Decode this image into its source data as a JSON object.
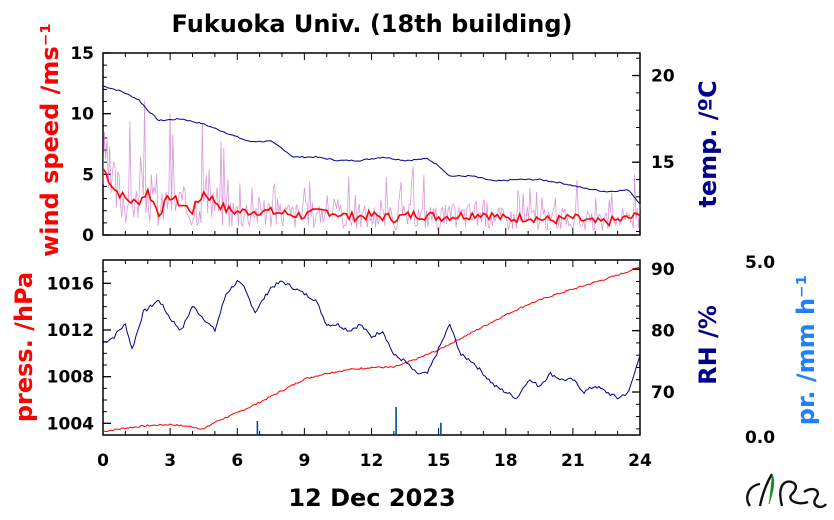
{
  "title": "Fukuoka Univ. (18th building)",
  "xlabel": "12 Dec 2023",
  "colors": {
    "wind": "#ff0000",
    "wind_raw": "#cc77cc",
    "temp": "#00008b",
    "press": "#ff0000",
    "rh": "#00008b",
    "precip": "#1e7fff",
    "precip_bar": "#00508a"
  },
  "logo_icon": "university-logo-icon",
  "chart_data": [
    {
      "type": "line",
      "panel": "top",
      "x_range": [
        0,
        24
      ],
      "x_ticks": [
        "0",
        "3",
        "6",
        "9",
        "12",
        "15",
        "18",
        "21",
        "24"
      ],
      "left_axis": {
        "label": "wind speed /ms⁻¹",
        "ticks": [
          "0",
          "5",
          "10",
          "15"
        ],
        "range": [
          0,
          15
        ]
      },
      "right_axis": {
        "label": "temp. /ºC",
        "ticks": [
          "15",
          "20"
        ],
        "range": [
          10.8,
          21.3
        ]
      },
      "series": [
        {
          "name": "wind speed",
          "axis": "left",
          "x": [
            0,
            0.5,
            1,
            1.5,
            2,
            2.5,
            3,
            3.5,
            4,
            4.5,
            5,
            5.5,
            6,
            7,
            8,
            9,
            10,
            11,
            12,
            13,
            14,
            15,
            16,
            17,
            18,
            19,
            20,
            21,
            22,
            23,
            24
          ],
          "y": [
            5.5,
            3.8,
            3.0,
            2.6,
            3.6,
            1.8,
            3.2,
            2.5,
            2.0,
            3.5,
            2.8,
            2.1,
            1.9,
            2.0,
            1.8,
            1.6,
            2.0,
            1.5,
            1.6,
            1.4,
            1.7,
            1.5,
            1.6,
            1.8,
            1.3,
            1.5,
            1.2,
            1.4,
            1.0,
            1.2,
            1.6
          ]
        },
        {
          "name": "temperature",
          "axis": "right",
          "x": [
            0,
            0.8,
            1.6,
            2.0,
            2.5,
            3.5,
            4.5,
            5.5,
            6.5,
            7.5,
            8.0,
            8.5,
            9.5,
            10.5,
            11.5,
            12.5,
            13.5,
            14.5,
            15.0,
            15.5,
            16.5,
            17.5,
            18.5,
            19.5,
            20.5,
            21.5,
            22.5,
            23.5,
            24
          ],
          "y": [
            19.4,
            19.1,
            18.6,
            18.0,
            17.4,
            17.5,
            17.2,
            16.7,
            16.2,
            16.2,
            15.8,
            15.3,
            15.3,
            15.1,
            15.1,
            15.3,
            15.1,
            15.2,
            14.8,
            14.2,
            14.2,
            13.9,
            14.0,
            14.0,
            13.8,
            13.5,
            13.3,
            13.4,
            12.6
          ]
        }
      ]
    },
    {
      "type": "line",
      "panel": "bottom",
      "x_range": [
        0,
        24
      ],
      "x_ticks": [
        "0",
        "3",
        "6",
        "9",
        "12",
        "15",
        "18",
        "21",
        "24"
      ],
      "left_axis": {
        "label": "press. /hPa",
        "ticks": [
          "1004",
          "1008",
          "1012",
          "1016"
        ],
        "range": [
          1003,
          1018
        ]
      },
      "right_axis": {
        "label": "RH /%",
        "ticks": [
          "70",
          "80",
          "90"
        ],
        "range": [
          63,
          91.5
        ]
      },
      "precip_axis": {
        "label": "pr. /mm h⁻¹",
        "ticks": [
          "0.0",
          "5.0"
        ],
        "range": [
          0,
          5
        ]
      },
      "series": [
        {
          "name": "pressure",
          "axis": "left",
          "x": [
            0,
            1,
            2,
            3,
            4,
            4.5,
            5,
            6,
            7,
            8,
            9,
            10,
            11,
            12,
            13,
            14,
            15,
            16,
            17,
            18,
            19,
            20,
            21,
            22,
            23,
            24
          ],
          "y": [
            1003.3,
            1003.6,
            1003.8,
            1003.9,
            1003.7,
            1003.5,
            1004.1,
            1004.9,
            1005.8,
            1006.8,
            1007.8,
            1008.3,
            1008.6,
            1008.8,
            1008.8,
            1009.5,
            1010.3,
            1011.3,
            1012.3,
            1013.3,
            1014.2,
            1014.9,
            1015.5,
            1016.1,
            1016.7,
            1017.4
          ]
        },
        {
          "name": "relative humidity",
          "axis": "right",
          "x": [
            0,
            0.5,
            0.7,
            1.0,
            1.3,
            1.8,
            2.5,
            3.0,
            3.5,
            4.0,
            4.5,
            5.0,
            5.5,
            6.0,
            6.3,
            6.8,
            7.5,
            8.0,
            8.5,
            9.0,
            9.5,
            10.0,
            10.5,
            11.0,
            11.5,
            12.0,
            12.5,
            13.0,
            13.5,
            14.0,
            14.5,
            15.0,
            15.5,
            16.0,
            16.5,
            17.0,
            17.5,
            18.0,
            18.5,
            19.0,
            19.5,
            20.0,
            20.5,
            21.0,
            21.5,
            22.0,
            22.5,
            23.0,
            23.5,
            24.0
          ],
          "y": [
            78,
            79,
            80,
            81,
            77,
            83,
            85,
            82,
            80,
            84,
            82,
            80,
            86,
            88,
            87,
            83,
            87,
            88,
            87,
            86,
            85,
            81,
            81,
            80,
            81,
            79,
            80,
            76,
            75,
            73,
            73,
            77,
            81,
            76,
            75,
            73,
            71,
            70,
            69,
            72,
            71,
            73,
            72,
            72,
            70,
            71,
            70,
            69,
            70,
            76
          ]
        }
      ],
      "precipitation": {
        "name": "precipitation",
        "x": [
          6.9,
          13.1,
          15.1
        ],
        "y": [
          0.4,
          0.8,
          0.35
        ]
      }
    }
  ]
}
